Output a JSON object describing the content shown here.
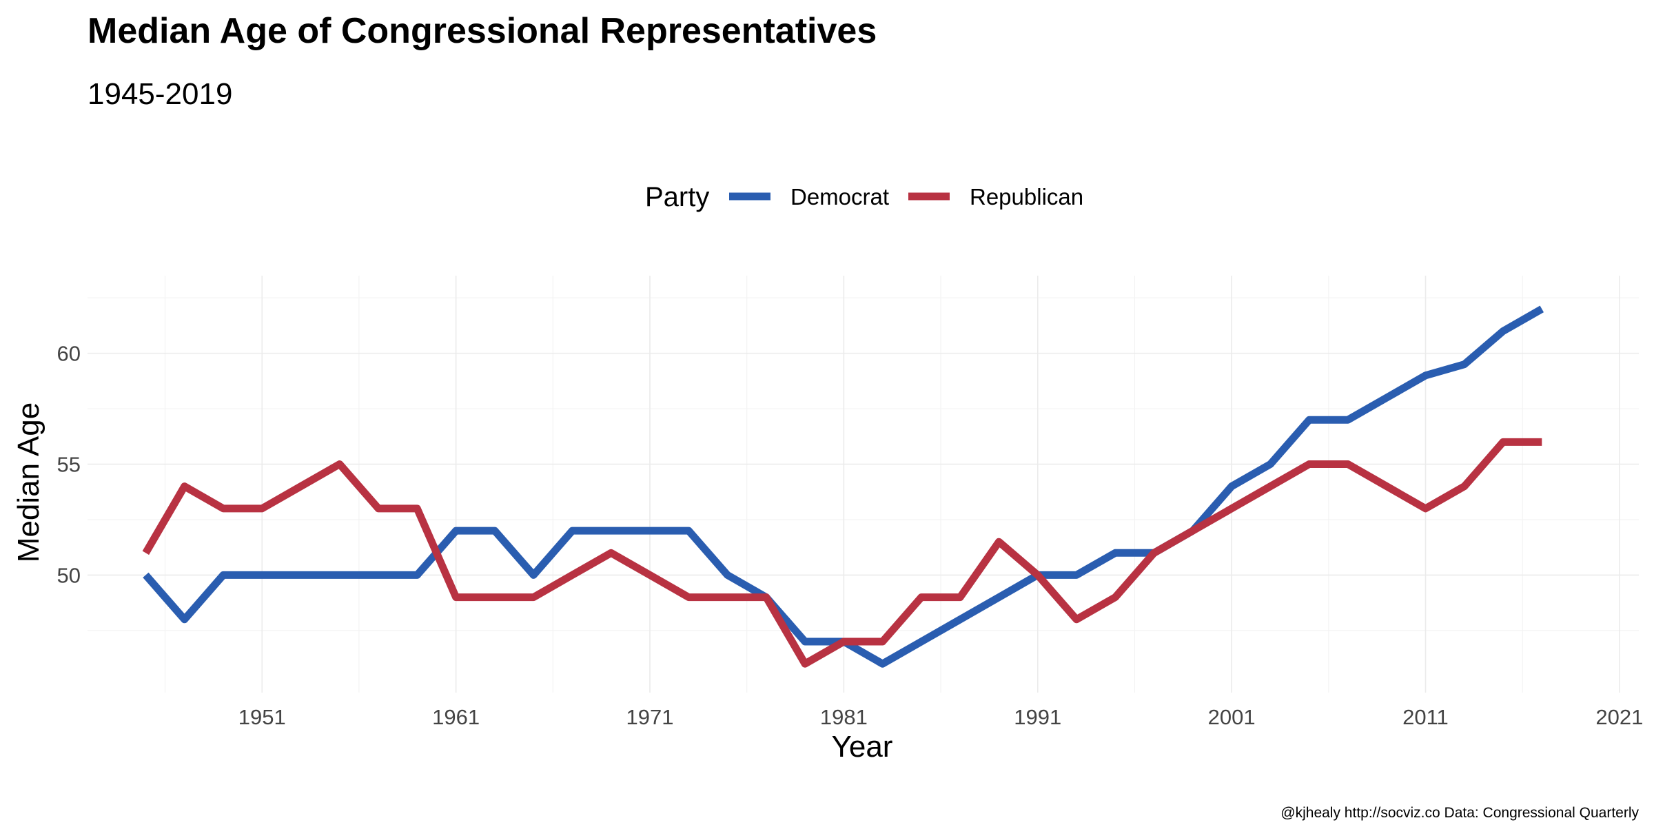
{
  "colors": {
    "democrat": "#2a5db0",
    "republican": "#b83242",
    "grid": "#ebebeb"
  },
  "chart_data": {
    "type": "line",
    "title": "Median Age of Congressional Representatives",
    "subtitle": "1945-2019",
    "legend_title": "Party",
    "legend_position": "top",
    "xlabel": "Year",
    "ylabel": "Median Age",
    "caption": "@kjhealy http://socviz.co Data: Congressional Quarterly",
    "xlim": [
      1942,
      2022
    ],
    "ylim": [
      44.7,
      63.5
    ],
    "x_ticks": [
      1951,
      1961,
      1971,
      1981,
      1991,
      2001,
      2011,
      2021
    ],
    "y_ticks": [
      50,
      55,
      60
    ],
    "grid": true,
    "series": [
      {
        "name": "Democrat",
        "color_key": "democrat",
        "x": [
          1945,
          1947,
          1949,
          1951,
          1953,
          1955,
          1957,
          1959,
          1961,
          1963,
          1965,
          1967,
          1969,
          1971,
          1973,
          1975,
          1977,
          1979,
          1981,
          1983,
          1985,
          1987,
          1989,
          1991,
          1993,
          1995,
          1997,
          1999,
          2001,
          2003,
          2005,
          2007,
          2009,
          2011,
          2013,
          2015,
          2017
        ],
        "y": [
          50,
          48,
          50,
          50,
          50,
          50,
          50,
          50,
          52,
          52,
          50,
          52,
          52,
          52,
          52,
          50,
          49,
          47,
          47,
          46,
          47,
          48,
          49,
          50,
          50,
          51,
          51,
          52,
          54,
          55,
          57,
          57,
          58,
          59,
          59.5,
          61,
          62
        ]
      },
      {
        "name": "Republican",
        "color_key": "republican",
        "x": [
          1945,
          1947,
          1949,
          1951,
          1953,
          1955,
          1957,
          1959,
          1961,
          1963,
          1965,
          1967,
          1969,
          1971,
          1973,
          1975,
          1977,
          1979,
          1981,
          1983,
          1985,
          1987,
          1989,
          1991,
          1993,
          1995,
          1997,
          1999,
          2001,
          2003,
          2005,
          2007,
          2009,
          2011,
          2013,
          2015,
          2017
        ],
        "y": [
          51,
          54,
          53,
          53,
          54,
          55,
          53,
          53,
          49,
          49,
          49,
          50,
          51,
          50,
          49,
          49,
          49,
          46,
          47,
          47,
          49,
          49,
          51.5,
          50,
          48,
          49,
          51,
          52,
          53,
          54,
          55,
          55,
          54,
          53,
          54,
          56,
          56
        ]
      }
    ]
  }
}
